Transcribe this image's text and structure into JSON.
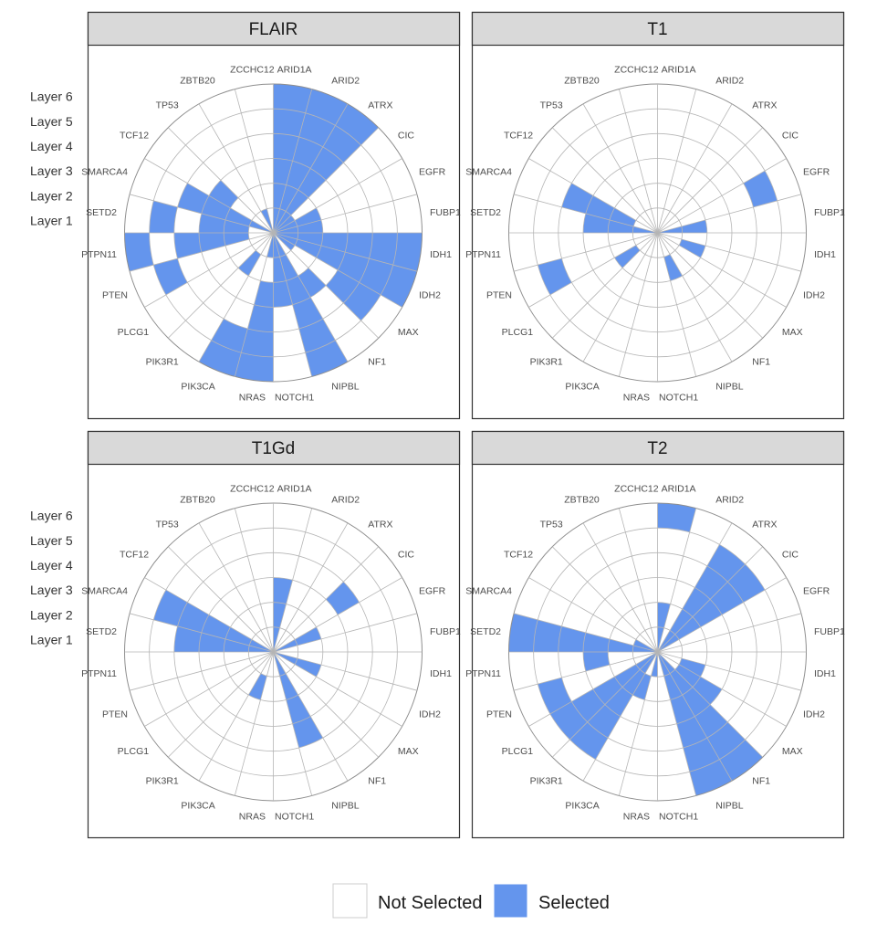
{
  "chart_data": {
    "type": "polar-grid",
    "genes": [
      "ARID1A",
      "ARID2",
      "ATRX",
      "CIC",
      "EGFR",
      "FUBP1",
      "IDH1",
      "IDH2",
      "MAX",
      "NF1",
      "NIPBL",
      "NOTCH1",
      "NRAS",
      "PIK3CA",
      "PIK3R1",
      "PLCG1",
      "PTEN",
      "PTPN11",
      "SETD2",
      "SMARCA4",
      "TCF12",
      "TP53",
      "ZBTB20",
      "ZCCHC12"
    ],
    "layers": [
      "Layer 1",
      "Layer 2",
      "Layer 3",
      "Layer 4",
      "Layer 5",
      "Layer 6"
    ],
    "panels": [
      {
        "title": "FLAIR",
        "selected": {
          "ARID1A": [
            1,
            2,
            3,
            4,
            5,
            6
          ],
          "ARID2": [
            1,
            2,
            3,
            4,
            5,
            6
          ],
          "ATRX": [
            1,
            2,
            3,
            4,
            5,
            6
          ],
          "CIC": [
            1
          ],
          "EGFR": [
            1,
            2
          ],
          "FUBP1": [
            1,
            2
          ],
          "IDH1": [
            1,
            2,
            3,
            4,
            5,
            6
          ],
          "IDH2": [
            1,
            2,
            3,
            4,
            5,
            6
          ],
          "MAX": [
            1,
            4,
            5
          ],
          "NF1": [
            3
          ],
          "NIPBL": [
            1,
            2,
            3,
            4,
            5,
            6
          ],
          "NOTCH1": [
            1,
            2,
            3
          ],
          "NRAS": [
            1,
            3,
            4,
            5,
            6
          ],
          "PIK3CA": [
            5,
            6
          ],
          "PIK3R1": [
            2
          ],
          "PLCG1": [],
          "PTEN": [
            5
          ],
          "PTPN11": [
            2,
            3,
            4,
            6
          ],
          "SETD2": [
            2,
            3,
            5
          ],
          "SMARCA4": [
            1,
            2,
            3,
            4
          ],
          "TCF12": [
            3
          ],
          "TP53": [],
          "ZBTB20": [
            1
          ],
          "ZCCHC12": []
        }
      },
      {
        "title": "T1",
        "selected": {
          "ARID1A": [],
          "ARID2": [],
          "ATRX": [],
          "CIC": [],
          "EGFR": [
            5
          ],
          "FUBP1": [
            1,
            2
          ],
          "IDH1": [],
          "IDH2": [
            2
          ],
          "MAX": [],
          "NF1": [],
          "NIPBL": [
            2
          ],
          "NOTCH1": [],
          "NRAS": [],
          "PIK3CA": [],
          "PIK3R1": [],
          "PLCG1": [
            2
          ],
          "PTEN": [
            5
          ],
          "PTPN11": [],
          "SETD2": [
            1,
            2,
            3
          ],
          "SMARCA4": [
            2,
            3,
            4
          ],
          "TCF12": [],
          "TP53": [],
          "ZBTB20": [],
          "ZCCHC12": []
        }
      },
      {
        "title": "T1Gd",
        "selected": {
          "ARID1A": [
            1,
            2,
            3
          ],
          "ARID2": [],
          "ATRX": [],
          "CIC": [
            4
          ],
          "EGFR": [
            1,
            2
          ],
          "FUBP1": [],
          "IDH1": [],
          "IDH2": [
            1,
            2
          ],
          "MAX": [],
          "NF1": [],
          "NIPBL": [
            1,
            2,
            3,
            4
          ],
          "NOTCH1": [],
          "NRAS": [],
          "PIK3CA": [
            2
          ],
          "PIK3R1": [],
          "PLCG1": [],
          "PTEN": [],
          "PTPN11": [],
          "SETD2": [
            1,
            2,
            3,
            4
          ],
          "SMARCA4": [
            1,
            2,
            3,
            4,
            5
          ],
          "TCF12": [],
          "TP53": [],
          "ZBTB20": [],
          "ZCCHC12": []
        }
      },
      {
        "title": "T2",
        "selected": {
          "ARID1A": [
            1,
            2,
            6
          ],
          "ARID2": [],
          "ATRX": [
            1,
            2,
            3,
            4,
            5
          ],
          "CIC": [
            1,
            2,
            3,
            4,
            5
          ],
          "EGFR": [],
          "FUBP1": [],
          "IDH1": [],
          "IDH2": [
            2
          ],
          "MAX": [
            2,
            3
          ],
          "NF1": [
            1,
            2,
            3,
            4,
            5,
            6
          ],
          "NIPBL": [
            1,
            2,
            3,
            4,
            5,
            6
          ],
          "NOTCH1": [],
          "NRAS": [
            1
          ],
          "PIK3CA": [
            2
          ],
          "PIK3R1": [
            1,
            2,
            3,
            4,
            5
          ],
          "PLCG1": [
            1,
            2,
            3,
            4,
            5
          ],
          "PTEN": [
            5
          ],
          "PTPN11": [
            3
          ],
          "SETD2": [
            1,
            2,
            3,
            4,
            5,
            6
          ],
          "SMARCA4": [
            1
          ],
          "TCF12": [],
          "TP53": [],
          "ZBTB20": [],
          "ZCCHC12": []
        }
      }
    ],
    "legend": {
      "not_selected": "Not Selected",
      "selected": "Selected",
      "position": "bottom"
    },
    "colors": {
      "selected": "#6495ED",
      "not_selected": "#ffffff",
      "strip": "#d9d9d9",
      "grid": "#b5b5b5",
      "panel_border": "#333333"
    }
  }
}
